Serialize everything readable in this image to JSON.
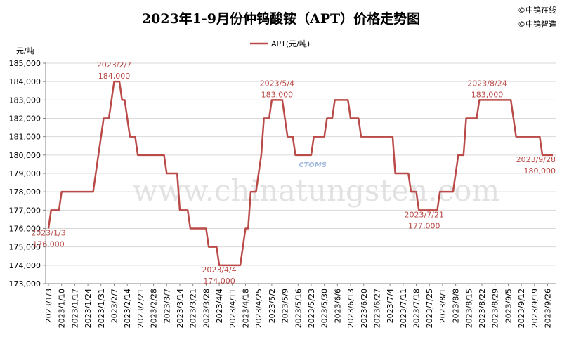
{
  "chart_data": {
    "type": "line",
    "title": "2023年1-9月份仲钨酸铵（APT）价格走势图",
    "credits": [
      "©中钨在线",
      "©中钨智造"
    ],
    "y_unit": "元/吨",
    "watermark": "www.chinatungsten.com",
    "logo_text": "CTOMS",
    "ylim": [
      173000,
      185000
    ],
    "yticks": [
      {
        "value": 173000,
        "label": "173,000"
      },
      {
        "value": 174000,
        "label": "174,000"
      },
      {
        "value": 175000,
        "label": "175,000"
      },
      {
        "value": 176000,
        "label": "176,000"
      },
      {
        "value": 177000,
        "label": "177,000"
      },
      {
        "value": 178000,
        "label": "178,000"
      },
      {
        "value": 179000,
        "label": "179,000"
      },
      {
        "value": 180000,
        "label": "180,000"
      },
      {
        "value": 181000,
        "label": "181,000"
      },
      {
        "value": 182000,
        "label": "182,000"
      },
      {
        "value": 183000,
        "label": "183,000"
      },
      {
        "value": 184000,
        "label": "184,000"
      },
      {
        "value": 185000,
        "label": "185,000"
      }
    ],
    "grid": true,
    "legend": "top",
    "categories": [
      "2023/1/3",
      null,
      null,
      null,
      null,
      "2023/1/10",
      null,
      null,
      null,
      null,
      "2023/1/17",
      null,
      null,
      null,
      null,
      "2023/1/24",
      null,
      null,
      null,
      null,
      "2023/1/31",
      null,
      null,
      null,
      null,
      "2023/2/7",
      null,
      null,
      null,
      null,
      "2023/2/14",
      null,
      null,
      null,
      null,
      "2023/2/21",
      null,
      null,
      null,
      null,
      "2023/2/28",
      null,
      null,
      null,
      null,
      "2023/3/7",
      null,
      null,
      null,
      null,
      "2023/3/14",
      null,
      null,
      null,
      null,
      "2023/3/21",
      null,
      null,
      null,
      null,
      "2023/3/28",
      null,
      null,
      null,
      null,
      "2023/4/4",
      null,
      null,
      null,
      null,
      "2023/4/11",
      null,
      null,
      null,
      null,
      "2023/4/18",
      null,
      null,
      null,
      null,
      "2023/4/25",
      null,
      null,
      null,
      null,
      "2023/5/2",
      null,
      null,
      null,
      null,
      "2023/5/9",
      null,
      null,
      null,
      null,
      "2023/5/16",
      null,
      null,
      null,
      null,
      "2023/5/23",
      null,
      null,
      null,
      null,
      "2023/5/30",
      null,
      null,
      null,
      null,
      "2023/6/6",
      null,
      null,
      null,
      null,
      "2023/6/13",
      null,
      null,
      null,
      null,
      "2023/6/20",
      null,
      null,
      null,
      null,
      "2023/6/27",
      null,
      null,
      null,
      null,
      "2023/7/4",
      null,
      null,
      null,
      null,
      "2023/7/11",
      null,
      null,
      null,
      null,
      "2023/7/18",
      null,
      null,
      null,
      null,
      "2023/7/25",
      null,
      null,
      null,
      null,
      "2023/8/1",
      null,
      null,
      null,
      null,
      "2023/8/8",
      null,
      null,
      null,
      null,
      "2023/8/15",
      null,
      null,
      null,
      null,
      "2023/8/22",
      null,
      null,
      null,
      null,
      "2023/8/29",
      null,
      null,
      null,
      null,
      "2023/9/5",
      null,
      null,
      null,
      null,
      "2023/9/12",
      null,
      null,
      null,
      null,
      "2023/9/19",
      null,
      null,
      null,
      null,
      "2023/9/26",
      null,
      null
    ],
    "series": [
      {
        "name": "APT(元/吨)",
        "color": "#b94a48",
        "values": [
          176000,
          177000,
          177000,
          177000,
          177000,
          178000,
          178000,
          178000,
          178000,
          178000,
          178000,
          178000,
          178000,
          178000,
          178000,
          178000,
          178000,
          178000,
          179000,
          180000,
          181000,
          182000,
          182000,
          182000,
          183000,
          184000,
          184000,
          184000,
          183000,
          183000,
          182000,
          181000,
          181000,
          181000,
          180000,
          180000,
          180000,
          180000,
          180000,
          180000,
          180000,
          180000,
          180000,
          180000,
          180000,
          179000,
          179000,
          179000,
          179000,
          179000,
          177000,
          177000,
          177000,
          177000,
          176000,
          176000,
          176000,
          176000,
          176000,
          176000,
          176000,
          175000,
          175000,
          175000,
          175000,
          174000,
          174000,
          174000,
          174000,
          174000,
          174000,
          174000,
          174000,
          174000,
          175000,
          176000,
          176000,
          178000,
          178000,
          178000,
          179000,
          180000,
          182000,
          182000,
          182000,
          183000,
          183000,
          183000,
          183000,
          183000,
          182000,
          181000,
          181000,
          181000,
          180000,
          180000,
          180000,
          180000,
          180000,
          180000,
          180000,
          181000,
          181000,
          181000,
          181000,
          181000,
          182000,
          182000,
          182000,
          183000,
          183000,
          183000,
          183000,
          183000,
          183000,
          182000,
          182000,
          182000,
          182000,
          181000,
          181000,
          181000,
          181000,
          181000,
          181000,
          181000,
          181000,
          181000,
          181000,
          181000,
          181000,
          181000,
          179000,
          179000,
          179000,
          179000,
          179000,
          179000,
          178000,
          178000,
          178000,
          177000,
          177000,
          177000,
          177000,
          177000,
          177000,
          177000,
          177000,
          178000,
          178000,
          178000,
          178000,
          178000,
          178000,
          179000,
          180000,
          180000,
          180000,
          182000,
          182000,
          182000,
          182000,
          182000,
          183000,
          183000,
          183000,
          183000,
          183000,
          183000,
          183000,
          183000,
          183000,
          183000,
          183000,
          183000,
          183000,
          182000,
          181000,
          181000,
          181000,
          181000,
          181000,
          181000,
          181000,
          181000,
          181000,
          181000,
          180000,
          180000,
          180000,
          180000,
          180000
        ]
      }
    ],
    "annotations": [
      {
        "date": "2023/1/3",
        "value": 176000,
        "label": "176,000",
        "position": "below"
      },
      {
        "date": "2023/2/7",
        "value": 184000,
        "label": "184,000",
        "position": "above"
      },
      {
        "date": "2023/4/4",
        "value": 174000,
        "label": "174,000",
        "position": "below"
      },
      {
        "date": "2023/5/4",
        "value": 183000,
        "label": "183,000",
        "position": "above"
      },
      {
        "date": "2023/7/21",
        "value": 177000,
        "label": "177,000",
        "position": "below"
      },
      {
        "date": "2023/8/24",
        "value": 183000,
        "label": "183,000",
        "position": "above"
      },
      {
        "date": "2023/9/28",
        "value": 180000,
        "label": "180,000",
        "position": "below"
      }
    ]
  }
}
